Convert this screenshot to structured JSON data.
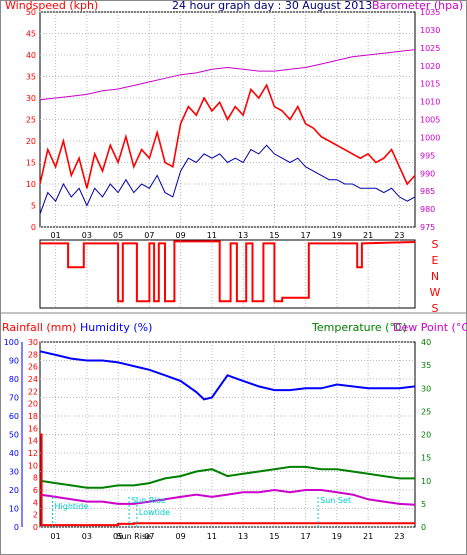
{
  "header": {
    "wind_label": "Windspeed (kph)",
    "title": "24 hour graph day : 30 August 2013",
    "baro_label": "Barometer (hpa)"
  },
  "lower_header": {
    "rain_label": "Rainfall (mm)",
    "humidity_label": "Humidity (%)",
    "temp_label": "Temperature (°C)",
    "dew_label": "Dew Point (°C)"
  },
  "colors": {
    "wind": "#ff0000",
    "wind_avg": "#0000aa",
    "baro": "#cc00cc",
    "humidity": "#0000ff",
    "temperature": "#008000",
    "dewpoint": "#cc00cc",
    "rain": "#ff0000",
    "annotation": "#00cccc"
  },
  "chart_data": [
    {
      "type": "line",
      "name": "wind-barometer",
      "x_ticks": [
        "01",
        "03",
        "05",
        "07",
        "09",
        "11",
        "13",
        "15",
        "17",
        "19",
        "21",
        "23"
      ],
      "xlim": [
        0,
        24
      ],
      "y_left": {
        "ticks": [
          0,
          5,
          10,
          15,
          20,
          25,
          30,
          35,
          40,
          45,
          50
        ],
        "ylim": [
          0,
          50
        ]
      },
      "y_right": {
        "ticks": [
          975,
          980,
          985,
          990,
          995,
          1000,
          1005,
          1010,
          1015,
          1020,
          1025,
          1030,
          1035
        ],
        "ylim": [
          975,
          1035
        ]
      },
      "series": [
        {
          "key": "gust",
          "axis": "left",
          "x": [
            0,
            0.5,
            1,
            1.5,
            2,
            2.5,
            3,
            3.5,
            4,
            4.5,
            5,
            5.5,
            6,
            6.5,
            7,
            7.5,
            8,
            8.5,
            9,
            9.5,
            10,
            10.5,
            11,
            11.5,
            12,
            12.5,
            13,
            13.5,
            14,
            14.5,
            15,
            15.5,
            16,
            16.5,
            17,
            17.5,
            18,
            18.5,
            19,
            19.5,
            20,
            20.5,
            21,
            21.5,
            22,
            22.5,
            23,
            23.5,
            24
          ],
          "values": [
            10,
            18,
            14,
            20,
            12,
            16,
            9,
            17,
            13,
            19,
            15,
            21,
            14,
            18,
            16,
            22,
            15,
            14,
            24,
            28,
            26,
            30,
            27,
            29,
            25,
            28,
            26,
            32,
            30,
            33,
            28,
            27,
            25,
            28,
            24,
            23,
            21,
            20,
            19,
            18,
            17,
            16,
            17,
            15,
            16,
            18,
            14,
            10,
            12
          ]
        },
        {
          "key": "average",
          "axis": "left",
          "x": [
            0,
            0.5,
            1,
            1.5,
            2,
            2.5,
            3,
            3.5,
            4,
            4.5,
            5,
            5.5,
            6,
            6.5,
            7,
            7.5,
            8,
            8.5,
            9,
            9.5,
            10,
            10.5,
            11,
            11.5,
            12,
            12.5,
            13,
            13.5,
            14,
            14.5,
            15,
            15.5,
            16,
            16.5,
            17,
            17.5,
            18,
            18.5,
            19,
            19.5,
            20,
            20.5,
            21,
            21.5,
            22,
            22.5,
            23,
            23.5,
            24
          ],
          "values": [
            3,
            8,
            6,
            10,
            7,
            9,
            5,
            9,
            7,
            10,
            8,
            11,
            8,
            10,
            9,
            12,
            8,
            7,
            13,
            16,
            15,
            17,
            16,
            17,
            15,
            16,
            15,
            18,
            17,
            19,
            17,
            16,
            15,
            16,
            14,
            13,
            12,
            11,
            11,
            10,
            10,
            9,
            9,
            9,
            8,
            9,
            7,
            6,
            7
          ]
        },
        {
          "key": "barometer",
          "axis": "right",
          "x": [
            0,
            1,
            2,
            3,
            4,
            5,
            6,
            7,
            8,
            9,
            10,
            11,
            12,
            13,
            14,
            15,
            16,
            17,
            18,
            19,
            20,
            21,
            22,
            23,
            24
          ],
          "values": [
            1010.5,
            1011,
            1011.5,
            1012,
            1013,
            1013.5,
            1014.5,
            1015.5,
            1016.5,
            1017.5,
            1018,
            1019,
            1019.5,
            1019,
            1018.5,
            1018.5,
            1019,
            1019.5,
            1020.5,
            1021.5,
            1022.5,
            1023,
            1023.5,
            1024,
            1024.5
          ]
        }
      ]
    },
    {
      "type": "line",
      "name": "wind-direction",
      "y_ticks": [
        "S",
        "E",
        "N",
        "W",
        "S"
      ],
      "xlim": [
        0,
        24
      ],
      "series": [
        {
          "key": "direction",
          "x": [
            0,
            0.5,
            1,
            1.8,
            1.8,
            2.8,
            2.8,
            5.0,
            5.0,
            5.3,
            5.3,
            6.2,
            6.2,
            7.0,
            7.0,
            7.3,
            7.3,
            7.6,
            7.6,
            8.0,
            8.0,
            8.6,
            8.6,
            11.5,
            11.5,
            12.2,
            12.2,
            12.6,
            12.6,
            13.2,
            13.2,
            13.6,
            13.6,
            14.3,
            14.3,
            15.0,
            15.0,
            15.5,
            15.5,
            17.2,
            17.2,
            18.3,
            18.3,
            19.2,
            19.2,
            20.3,
            20.3,
            20.6,
            20.6,
            24
          ],
          "values": [
            0.95,
            0.95,
            0.95,
            0.95,
            0.6,
            0.6,
            0.95,
            0.95,
            0.1,
            0.1,
            0.95,
            0.95,
            0.1,
            0.1,
            0.95,
            0.95,
            0.1,
            0.1,
            0.95,
            0.95,
            0.1,
            0.1,
            0.98,
            0.98,
            0.1,
            0.1,
            0.95,
            0.95,
            0.1,
            0.1,
            0.95,
            0.95,
            0.1,
            0.1,
            0.95,
            0.95,
            0.1,
            0.1,
            0.15,
            0.15,
            0.95,
            0.95,
            0.95,
            0.95,
            0.95,
            0.95,
            0.6,
            0.6,
            0.95,
            0.97
          ]
        }
      ]
    },
    {
      "type": "line",
      "name": "rain-humidity-temperature",
      "x_ticks": [
        "01",
        "03",
        "05",
        "07",
        "09",
        "11",
        "13",
        "15",
        "17",
        "19",
        "21",
        "23"
      ],
      "xlim": [
        0,
        24
      ],
      "y_rain": {
        "ticks": [
          0,
          2,
          4,
          6,
          8,
          10,
          12,
          14,
          16,
          18,
          20,
          22,
          24,
          26,
          28,
          30
        ],
        "ylim": [
          0,
          30
        ]
      },
      "y_humidity": {
        "ticks": [
          0,
          10,
          20,
          30,
          40,
          50,
          60,
          70,
          80,
          90,
          100
        ],
        "ylim": [
          0,
          100
        ]
      },
      "y_temperature": {
        "ticks": [
          0,
          5,
          10,
          15,
          20,
          25,
          30,
          35,
          40
        ],
        "ylim": [
          0,
          40
        ]
      },
      "annotations": [
        {
          "text": "Hightide",
          "x": 0.8
        },
        {
          "text": "Sun Rise",
          "x": 5.7
        },
        {
          "text": "Lowtide",
          "x": 6.2
        },
        {
          "text": "Sun Set",
          "x": 17.8
        }
      ],
      "x_labels": [
        "Sun Rise",
        "Sun Set"
      ],
      "series": [
        {
          "key": "humidity",
          "axis": "humidity",
          "x": [
            0,
            1,
            2,
            3,
            4,
            5,
            6,
            7,
            8,
            9,
            10,
            10.5,
            11,
            12,
            13,
            14,
            15,
            16,
            17,
            18,
            19,
            20,
            21,
            22,
            23,
            24
          ],
          "values": [
            95,
            93,
            91,
            90,
            90,
            89,
            87,
            85,
            82,
            79,
            73,
            69,
            70,
            82,
            79,
            76,
            74,
            74,
            75,
            75,
            77,
            76,
            75,
            75,
            75,
            76
          ]
        },
        {
          "key": "temperature",
          "axis": "temperature",
          "x": [
            0,
            1,
            2,
            3,
            4,
            5,
            6,
            7,
            8,
            9,
            10,
            11,
            12,
            13,
            14,
            15,
            16,
            17,
            18,
            19,
            20,
            21,
            22,
            23,
            24
          ],
          "values": [
            10,
            9.5,
            9,
            8.5,
            8.5,
            9,
            9,
            9.5,
            10.5,
            11,
            12,
            12.5,
            11,
            11.5,
            12,
            12.5,
            13,
            13,
            12.5,
            12.5,
            12,
            11.5,
            11,
            10.5,
            10.5
          ]
        },
        {
          "key": "dewpoint",
          "axis": "temperature",
          "x": [
            0,
            1,
            2,
            3,
            4,
            5,
            6,
            7,
            8,
            9,
            10,
            11,
            12,
            13,
            14,
            15,
            16,
            17,
            18,
            19,
            20,
            21,
            22,
            23,
            24
          ],
          "values": [
            7,
            6.5,
            6,
            5.5,
            5.5,
            5,
            5,
            5.5,
            6,
            6.5,
            7,
            6.5,
            7,
            7.5,
            7.5,
            8,
            7.5,
            8,
            8,
            7.5,
            7,
            6,
            5.5,
            5,
            4.8
          ]
        },
        {
          "key": "rainfall",
          "axis": "rain",
          "x": [
            0,
            0.1,
            0.1,
            5,
            5,
            6,
            6,
            12,
            12,
            24
          ],
          "values": [
            15,
            15,
            0.3,
            0.3,
            0.5,
            0.5,
            0.6,
            0.6,
            0.6,
            0.6
          ]
        }
      ]
    }
  ]
}
